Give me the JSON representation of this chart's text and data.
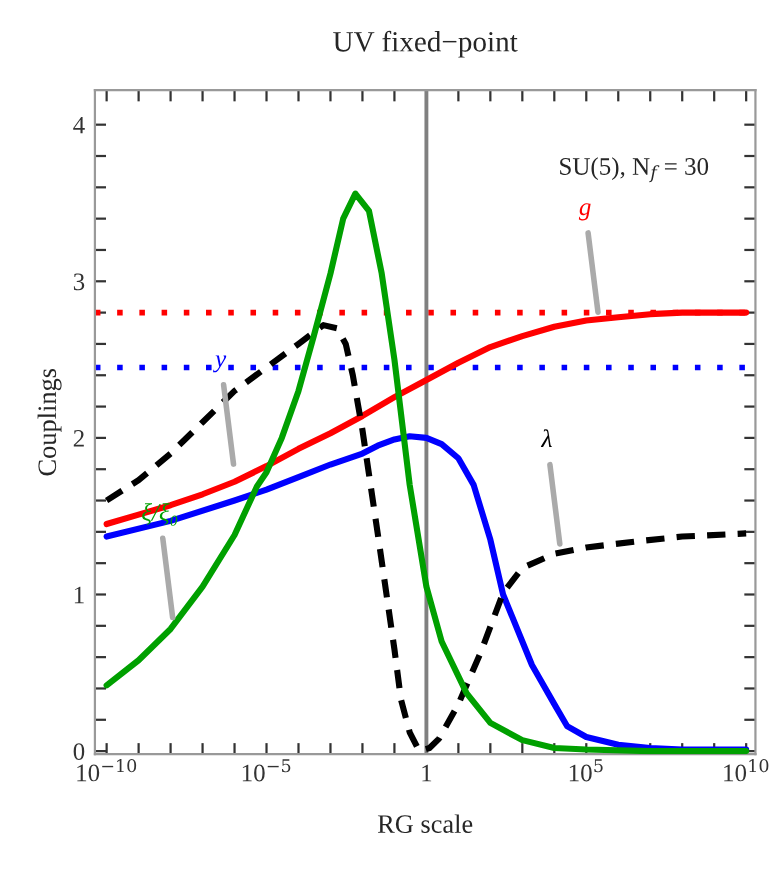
{
  "chart_data": {
    "type": "line",
    "title": "UV fixed−point",
    "xlabel": "RG scale",
    "ylabel": "Couplings",
    "log": "x",
    "xlim": [
      4.3e-11,
      19500000000.0
    ],
    "ylim": [
      -0.02,
      4.22
    ],
    "xticks": [
      {
        "value": 1e-10,
        "label": "10$^{−10}$"
      },
      {
        "value": 1e-09,
        "label": null
      },
      {
        "value": 1e-08,
        "label": null
      },
      {
        "value": 1e-07,
        "label": null
      },
      {
        "value": 1e-06,
        "label": null
      },
      {
        "value": 1e-05,
        "label": "10$^{−5}$"
      },
      {
        "value": 0.0001,
        "label": null
      },
      {
        "value": 0.001,
        "label": null
      },
      {
        "value": 0.01,
        "label": null
      },
      {
        "value": 0.1,
        "label": null
      },
      {
        "value": 1,
        "label": "1"
      },
      {
        "value": 10,
        "label": null
      },
      {
        "value": 100,
        "label": null
      },
      {
        "value": 1000,
        "label": null
      },
      {
        "value": 10000,
        "label": null
      },
      {
        "value": 100000,
        "label": "10$^{5}$"
      },
      {
        "value": 1000000.0,
        "label": null
      },
      {
        "value": 10000000.0,
        "label": null
      },
      {
        "value": 100000000.0,
        "label": null
      },
      {
        "value": 1000000000.0,
        "label": null
      },
      {
        "value": 10000000000.0,
        "label": "10$^{10}$"
      }
    ],
    "yticks": [
      0,
      {
        "value": 0.2,
        "label": null
      },
      {
        "value": 0.4,
        "label": null
      },
      {
        "value": 0.6,
        "label": null
      },
      {
        "value": 0.8,
        "label": null
      },
      1,
      {
        "value": 1.2,
        "label": null
      },
      {
        "value": 1.4,
        "label": null
      },
      {
        "value": 1.6,
        "label": null
      },
      {
        "value": 1.8,
        "label": null
      },
      2,
      {
        "value": 2.2,
        "label": null
      },
      {
        "value": 2.4,
        "label": null
      },
      {
        "value": 2.6,
        "label": null
      },
      {
        "value": 2.8,
        "label": null
      },
      3,
      {
        "value": 3.2,
        "label": null
      },
      {
        "value": 3.4,
        "label": null
      },
      {
        "value": 3.6,
        "label": null
      },
      {
        "value": 3.8,
        "label": null
      },
      4
    ],
    "grid": false,
    "legend": false,
    "series": [
      {
        "color": "#ff0000",
        "line_style": "solid",
        "x": [
          1e-10,
          1e-09,
          1e-08,
          1e-07,
          1e-06,
          1e-05,
          0.0001,
          0.001,
          0.01,
          0.1,
          1,
          10,
          100,
          1000.0,
          10000.0,
          100000.0,
          1000000.0,
          10000000.0,
          100000000.0,
          10000000000.0
        ],
        "values": [
          1.45,
          1.51,
          1.57,
          1.64,
          1.72,
          1.82,
          1.93,
          2.03,
          2.14,
          2.26,
          2.37,
          2.48,
          2.58,
          2.65,
          2.71,
          2.75,
          2.77,
          2.79,
          2.8,
          2.8
        ]
      },
      {
        "color": "#0000ff",
        "line_style": "solid",
        "x": [
          1e-10,
          1e-08,
          1e-06,
          1e-05,
          0.0001,
          0.001,
          0.01,
          0.03,
          0.1,
          0.3,
          1,
          3,
          10,
          30,
          100,
          250,
          1000,
          2000,
          10000.0,
          25000.0,
          100000.0,
          1000000.0,
          10000000.0,
          100000000.0,
          10000000000.0
        ],
        "values": [
          1.37,
          1.47,
          1.6,
          1.67,
          1.75,
          1.83,
          1.9,
          1.95,
          1.99,
          2.01,
          2.0,
          1.96,
          1.87,
          1.7,
          1.35,
          1.0,
          0.7,
          0.55,
          0.3,
          0.16,
          0.09,
          0.04,
          0.02,
          0.01,
          0.01
        ]
      },
      {
        "color": "#000000",
        "line_style": "dashed",
        "x": [
          1e-10,
          1e-09,
          1e-08,
          1e-07,
          1e-06,
          1e-05,
          0.0001,
          0.0006,
          0.0016,
          0.003,
          0.005,
          0.01,
          0.03,
          0.1,
          0.16,
          0.3,
          0.6,
          1.25,
          2.5,
          10,
          50,
          250,
          1000,
          10000.0,
          100000.0,
          4000000.0,
          100000000.0,
          10000000000.0
        ],
        "values": [
          1.6,
          1.73,
          1.9,
          2.1,
          2.3,
          2.45,
          2.6,
          2.72,
          2.7,
          2.6,
          2.4,
          2.05,
          1.39,
          0.65,
          0.33,
          0.12,
          0.0,
          0.02,
          0.08,
          0.3,
          0.63,
          1.01,
          1.17,
          1.26,
          1.3,
          1.34,
          1.37,
          1.39
        ]
      },
      {
        "color": "#00a000",
        "line_style": "solid",
        "x": [
          1e-10,
          1e-09,
          1e-08,
          1e-07,
          1e-06,
          5e-06,
          1e-05,
          3e-05,
          0.0001,
          0.0003,
          0.001,
          0.0025,
          0.006,
          0.016,
          0.04,
          0.1,
          0.3,
          1,
          3,
          18,
          100,
          1000,
          10000.0,
          100000.0,
          10000000.0,
          10000000000.0
        ],
        "values": [
          0.42,
          0.58,
          0.78,
          1.05,
          1.38,
          1.69,
          1.78,
          2.0,
          2.3,
          2.65,
          3.05,
          3.4,
          3.56,
          3.45,
          3.05,
          2.5,
          1.7,
          1.05,
          0.7,
          0.37,
          0.18,
          0.07,
          0.02,
          0.01,
          0.0,
          0.0
        ]
      }
    ],
    "ref_lines": [
      {
        "axis": "y",
        "value": 2.8,
        "color": "#ff0000",
        "line_style": "dotted"
      },
      {
        "axis": "y",
        "value": 2.45,
        "color": "#0000ff",
        "line_style": "dotted"
      },
      {
        "axis": "x",
        "value": 1,
        "color": "#808080",
        "line_style": "solid"
      }
    ],
    "annotations": [
      {
        "text": "g",
        "x": 250000.0,
        "y": 2.75
      },
      {
        "text": "y",
        "x": 1e-06,
        "y": 1.78
      },
      {
        "text": "λ",
        "x": 16000.0,
        "y": 1.27
      },
      {
        "text": "ξ/ξ₀",
        "x": 1.25e-08,
        "y": 0.8
      },
      "SU(5), N$_{f}$ = 30"
    ]
  }
}
